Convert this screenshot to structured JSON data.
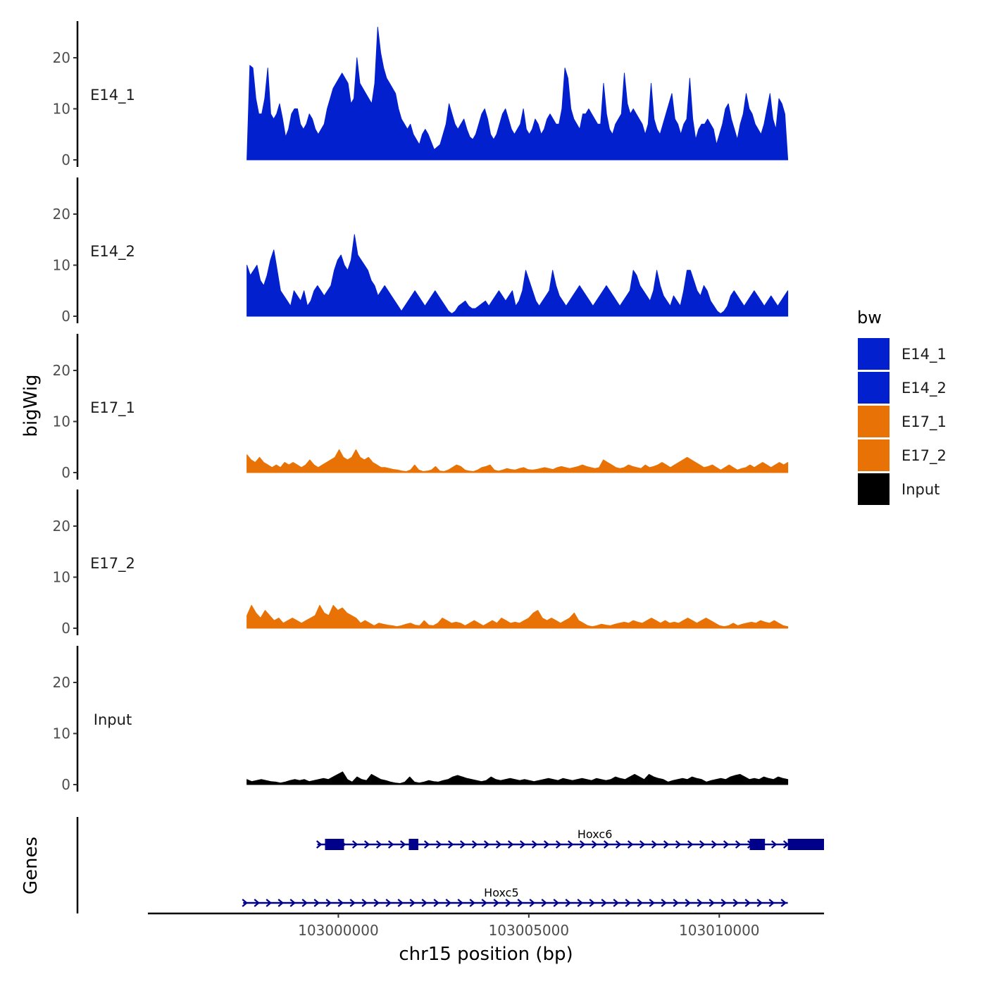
{
  "chart_data": {
    "type": "area",
    "ylabel": "bigWig",
    "xlabel": "chr15 position (bp)",
    "genes_label": "Genes",
    "ylim": [
      0,
      27
    ],
    "yticks": [
      0,
      10,
      20
    ],
    "xlim": [
      102995000,
      103012750
    ],
    "xticks": [
      103000000,
      103005000,
      103010000
    ],
    "xtick_labels": [
      "103000000",
      "103005000",
      "103010000"
    ],
    "region_start": 102997600,
    "region_end": 103011800,
    "series": [
      {
        "name": "E14_1",
        "color": "#0320CF",
        "values": [
          0,
          18.5,
          18,
          12,
          9,
          9,
          12,
          18,
          9,
          8,
          9,
          11,
          8,
          4.5,
          6,
          9,
          10,
          10,
          7,
          6,
          7,
          9,
          8,
          6,
          5,
          6,
          7,
          10,
          12,
          14,
          15,
          16,
          17,
          16,
          15,
          11,
          12,
          20,
          15,
          14,
          13,
          12,
          11,
          15,
          26,
          21,
          18,
          16,
          15,
          14,
          13,
          10,
          8,
          7,
          6,
          7,
          5,
          4,
          3,
          5,
          6,
          5,
          3.5,
          2,
          2.5,
          3,
          5,
          7,
          11,
          9,
          7,
          6,
          7,
          8,
          6,
          4.5,
          4,
          5,
          7,
          9,
          10,
          8,
          5,
          4,
          5,
          7,
          9,
          10,
          8,
          6,
          5,
          6,
          7,
          10,
          6,
          5,
          6,
          8,
          7,
          5,
          6,
          8,
          9,
          8,
          7,
          7,
          10,
          18,
          16,
          10,
          8,
          7,
          6,
          9,
          9,
          10,
          9,
          8,
          7,
          7,
          15,
          9,
          6,
          5,
          7,
          8,
          9,
          17,
          11,
          9,
          10,
          9,
          8,
          7,
          5,
          7,
          15,
          8,
          6,
          5,
          7,
          9,
          11,
          13,
          8,
          7,
          5,
          7,
          8,
          16,
          8,
          4,
          6,
          7,
          7,
          8,
          7,
          6,
          3,
          5,
          7,
          10,
          11,
          8,
          6,
          4,
          7,
          9,
          13,
          10,
          9,
          7,
          6,
          5,
          7,
          10,
          13,
          8,
          6,
          12,
          11,
          9,
          0
        ]
      },
      {
        "name": "E14_2",
        "color": "#0320CF",
        "values": [
          10,
          8,
          9,
          10,
          7,
          6,
          8,
          11,
          13,
          9,
          5,
          4,
          3,
          2,
          5,
          4,
          3,
          5,
          2,
          3,
          5,
          6,
          5,
          4,
          5,
          6,
          9,
          11,
          12,
          10,
          9,
          11,
          16,
          12,
          11,
          10,
          9,
          7,
          6,
          4,
          5,
          6,
          5,
          4,
          3,
          2,
          1,
          2,
          3,
          4,
          5,
          4,
          3,
          2,
          3,
          4,
          5,
          4,
          3,
          2,
          1,
          0.5,
          1,
          2,
          2.5,
          3,
          2,
          1.5,
          1.5,
          2,
          2.5,
          3,
          2,
          3,
          4,
          5,
          4,
          3,
          4,
          5,
          2,
          3,
          5,
          9,
          7,
          5,
          3,
          2,
          3,
          4,
          5,
          9,
          6,
          4,
          3,
          2,
          3,
          4,
          5,
          6,
          5,
          4,
          3,
          2,
          3,
          4,
          5,
          6,
          5,
          4,
          3,
          2,
          3,
          4,
          5,
          9,
          8,
          6,
          5,
          4,
          3,
          5,
          9,
          6,
          4,
          3,
          2,
          4,
          3,
          2,
          5,
          9,
          9,
          7,
          5,
          4,
          6,
          5,
          3,
          2,
          1,
          0.5,
          1,
          2,
          4,
          5,
          4,
          3,
          2,
          3,
          4,
          5,
          4,
          3,
          2,
          3,
          4,
          3,
          2,
          3,
          4,
          5
        ]
      },
      {
        "name": "E17_1",
        "color": "#E87205",
        "values": [
          3.5,
          2.5,
          2,
          3,
          2,
          1.5,
          1,
          1.5,
          1,
          2,
          1.5,
          2,
          1.5,
          1,
          1.5,
          2.5,
          1.5,
          1,
          1.5,
          2,
          2.5,
          3,
          4.5,
          3,
          2.5,
          3,
          4.5,
          3,
          2.5,
          3,
          2,
          1.5,
          1,
          1,
          0.8,
          0.6,
          0.5,
          0.3,
          0.2,
          0.5,
          1.5,
          0.5,
          0.2,
          0.3,
          0.5,
          1.2,
          0.3,
          0.2,
          0.5,
          1,
          1.5,
          1.2,
          0.5,
          0.3,
          0.2,
          0.5,
          1,
          1.2,
          1.5,
          0.5,
          0.3,
          0.5,
          0.8,
          0.6,
          0.5,
          0.8,
          1,
          0.6,
          0.5,
          0.6,
          0.8,
          1,
          0.8,
          0.6,
          1,
          1.2,
          1,
          0.8,
          1,
          1.2,
          1.5,
          1.2,
          1,
          0.8,
          1,
          2.5,
          2,
          1.5,
          1,
          0.8,
          1,
          1.5,
          1.2,
          1,
          0.8,
          1.5,
          1,
          1.2,
          1.5,
          2,
          1.5,
          1,
          1.5,
          2,
          2.5,
          3,
          2.5,
          2,
          1.5,
          1,
          1.2,
          1.5,
          1,
          0.5,
          1,
          1.5,
          1,
          0.5,
          0.8,
          1,
          1.5,
          1,
          1.5,
          2,
          1.5,
          1,
          1.5,
          2,
          1.5,
          2
        ]
      },
      {
        "name": "E17_2",
        "color": "#E87205",
        "values": [
          2.5,
          4.5,
          3,
          2,
          3.5,
          2.5,
          1.5,
          2,
          1,
          1.5,
          2,
          1.5,
          1,
          1.5,
          2,
          2.5,
          4.5,
          3,
          2.5,
          4.5,
          3.5,
          4,
          3,
          2.5,
          2,
          1,
          1.5,
          1,
          0.5,
          1,
          0.8,
          0.6,
          0.5,
          0.3,
          0.5,
          0.8,
          1,
          0.6,
          0.5,
          1.5,
          0.6,
          0.5,
          1,
          2,
          1.5,
          1,
          1.2,
          1,
          0.5,
          1,
          1.5,
          1,
          0.5,
          1,
          1.5,
          1,
          2,
          1.5,
          1,
          1.2,
          1,
          1.5,
          2,
          3,
          3.5,
          2,
          1.5,
          2,
          1.5,
          1,
          1.5,
          2,
          3,
          1.5,
          1,
          0.5,
          0.3,
          0.5,
          0.8,
          0.6,
          0.5,
          0.8,
          1,
          1.2,
          1,
          1.5,
          1.2,
          1,
          1.5,
          2,
          1.5,
          1,
          1.5,
          1,
          1.2,
          1,
          1.5,
          2,
          1.5,
          1,
          1.5,
          2,
          1.5,
          1,
          0.5,
          0.3,
          0.5,
          1,
          0.5,
          0.8,
          1,
          1.2,
          1,
          1.5,
          1.2,
          1,
          1.5,
          1,
          0.5,
          0.3
        ]
      },
      {
        "name": "Input",
        "color": "#000000",
        "values": [
          1,
          0.6,
          0.8,
          1,
          0.8,
          0.6,
          0.5,
          0.3,
          0.5,
          0.8,
          1,
          0.8,
          1,
          0.6,
          0.8,
          1,
          1.2,
          1,
          1.5,
          2,
          2.5,
          1,
          0.5,
          1.5,
          1,
          0.8,
          2,
          1.5,
          1,
          0.8,
          0.5,
          0.3,
          0.2,
          0.5,
          1.5,
          0.5,
          0.3,
          0.5,
          0.8,
          0.6,
          0.5,
          0.8,
          1,
          1.5,
          1.8,
          1.5,
          1.2,
          1,
          0.8,
          0.6,
          0.8,
          1.5,
          1,
          0.8,
          1,
          1.2,
          1,
          0.8,
          1,
          0.8,
          0.6,
          0.8,
          1,
          1.2,
          1,
          0.8,
          1.2,
          1,
          0.8,
          1,
          1.2,
          1,
          0.8,
          1.2,
          1,
          0.8,
          1,
          1.5,
          1.2,
          1,
          1.5,
          2,
          1.5,
          1,
          2,
          1.5,
          1.2,
          1,
          0.5,
          0.8,
          1,
          1.2,
          1,
          1.5,
          1.2,
          1,
          0.5,
          0.8,
          1,
          1.2,
          1,
          1.5,
          1.8,
          2,
          1.5,
          1,
          1.2,
          1,
          1.5,
          1.2,
          1,
          1.5,
          1.2,
          1
        ]
      }
    ],
    "genes": [
      {
        "name": "Hoxc6",
        "start": 102999450,
        "end": 103011800,
        "strand": "+",
        "exons": [
          [
            102999650,
            103000150
          ],
          [
            103001850,
            103002100
          ],
          [
            103010800,
            103011200
          ],
          [
            103011800,
            103012750
          ]
        ]
      },
      {
        "name": "Hoxc5",
        "start": 102997500,
        "end": 103011800,
        "strand": "+",
        "exons": []
      }
    ],
    "legend": {
      "title": "bw",
      "position": "right",
      "entries": [
        {
          "label": "E14_1",
          "color": "#0320CF"
        },
        {
          "label": "E14_2",
          "color": "#0320CF"
        },
        {
          "label": "E17_1",
          "color": "#E87205"
        },
        {
          "label": "E17_2",
          "color": "#E87205"
        },
        {
          "label": "Input",
          "color": "#000000"
        }
      ]
    },
    "gene_color": "#00008B",
    "grid": false
  }
}
